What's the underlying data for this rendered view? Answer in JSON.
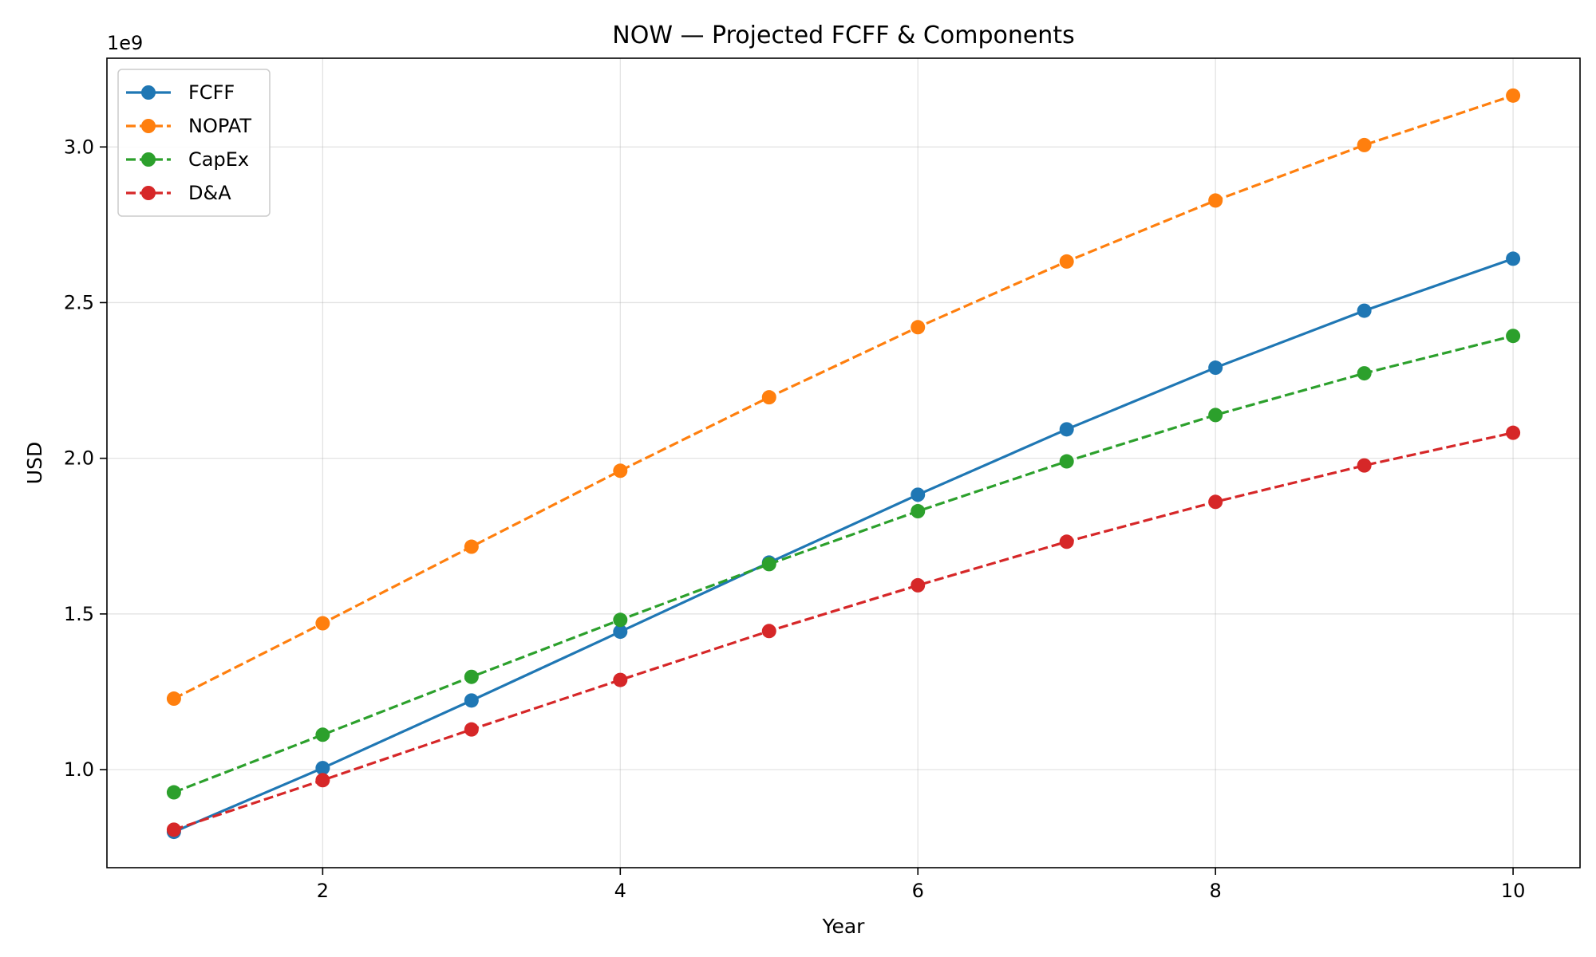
{
  "chart_data": {
    "type": "line",
    "title": "NOW — Projected FCFF & Components",
    "xlabel": "Year",
    "ylabel": "USD",
    "y_offset_label": "1e9",
    "y_scale": 1000000000,
    "xlim": [
      0.55,
      10.45
    ],
    "ylim": [
      0.685,
      3.285
    ],
    "x_ticks": [
      2,
      4,
      6,
      8,
      10
    ],
    "y_ticks": [
      1.0,
      1.5,
      2.0,
      2.5,
      3.0
    ],
    "x_tick_labels": [
      "2",
      "4",
      "6",
      "8",
      "10"
    ],
    "y_tick_labels": [
      "1.0",
      "1.5",
      "2.0",
      "2.5",
      "3.0"
    ],
    "grid": true,
    "legend_position": "top-left",
    "x": [
      1,
      2,
      3,
      4,
      5,
      6,
      7,
      8,
      9,
      10
    ],
    "series": [
      {
        "name": "FCFF",
        "color": "#1f77b4",
        "dash": "solid",
        "values": [
          0.8,
          1.005,
          1.222,
          1.443,
          1.665,
          1.883,
          2.093,
          2.291,
          2.474,
          2.641
        ]
      },
      {
        "name": "NOPAT",
        "color": "#ff7f0e",
        "dash": "dashed",
        "values": [
          1.228,
          1.47,
          1.716,
          1.96,
          2.196,
          2.421,
          2.632,
          2.828,
          3.006,
          3.165
        ]
      },
      {
        "name": "CapEx",
        "color": "#2ca02c",
        "dash": "dashed",
        "values": [
          0.927,
          1.112,
          1.298,
          1.481,
          1.66,
          1.83,
          1.99,
          2.139,
          2.273,
          2.393
        ]
      },
      {
        "name": "D&A",
        "color": "#d62728",
        "dash": "dashed",
        "values": [
          0.807,
          0.966,
          1.129,
          1.288,
          1.445,
          1.592,
          1.732,
          1.86,
          1.977,
          2.082
        ]
      }
    ]
  }
}
